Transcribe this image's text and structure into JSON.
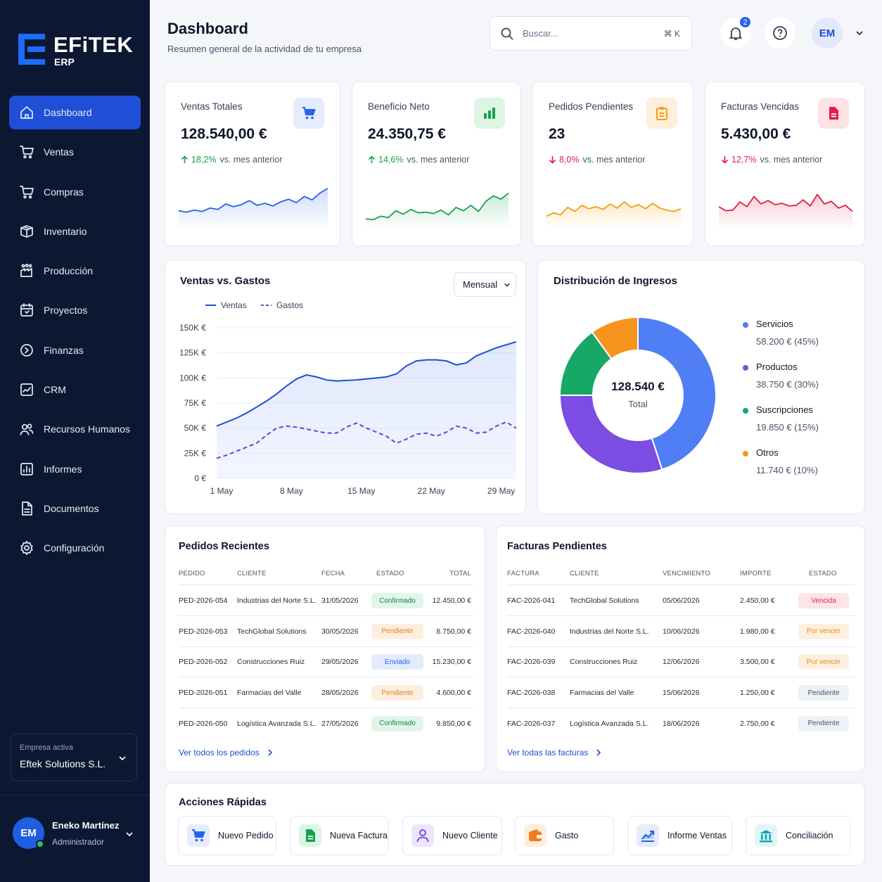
{
  "brand": {
    "name": "EFiTEK",
    "sub": "ERP"
  },
  "sidebar": {
    "items": [
      {
        "label": "Dashboard",
        "icon": "home-icon",
        "active": true
      },
      {
        "label": "Ventas",
        "icon": "cart-icon"
      },
      {
        "label": "Compras",
        "icon": "cart-icon"
      },
      {
        "label": "Inventario",
        "icon": "box-icon"
      },
      {
        "label": "Producción",
        "icon": "factory-icon"
      },
      {
        "label": "Proyectos",
        "icon": "calendar-icon"
      },
      {
        "label": "Finanzas",
        "icon": "coin-icon"
      },
      {
        "label": "CRM",
        "icon": "chart-icon"
      },
      {
        "label": "Recursos Humanos",
        "icon": "users-icon"
      },
      {
        "label": "Informes",
        "icon": "report-icon"
      },
      {
        "label": "Documentos",
        "icon": "document-icon"
      },
      {
        "label": "Configuración",
        "icon": "gear-icon"
      }
    ],
    "company_label": "Empresa activa",
    "company_value": "Eftek Solutions S.L.",
    "user": {
      "initials": "EM",
      "name": "Eneko Martínez",
      "role": "Administrador"
    }
  },
  "header": {
    "title": "Dashboard",
    "subtitle": "Resumen general de la actividad de tu empresa",
    "search_placeholder": "Buscar...",
    "search_shortcut": "⌘ K",
    "notifications": "2",
    "avatar": "EM"
  },
  "kpis": [
    {
      "title": "Ventas Totales",
      "value": "128.540,00 €",
      "change": "18,2%",
      "suffix": "vs. mes anterior",
      "dir": "up",
      "color": "#2563eb",
      "bg": "#e4ecfd",
      "icon": "cart-icon",
      "spark": [
        30,
        28,
        31,
        29,
        34,
        32,
        40,
        36,
        39,
        45,
        38,
        41,
        37,
        43,
        47,
        42,
        51,
        46,
        56,
        63
      ]
    },
    {
      "title": "Beneficio Neto",
      "value": "24.350,75 €",
      "change": "14,6%",
      "suffix": "vs. mes anterior",
      "dir": "up",
      "color": "#16a34a",
      "bg": "#dcf5e5",
      "icon": "bar-chart-icon",
      "spark": [
        18,
        17,
        22,
        20,
        30,
        25,
        32,
        27,
        28,
        26,
        31,
        24,
        35,
        30,
        38,
        29,
        44,
        52,
        47,
        56
      ]
    },
    {
      "title": "Pedidos Pendientes",
      "value": "23",
      "change": "8,0%",
      "suffix": "vs. mes anterior",
      "dir": "down",
      "color": "#f59e0b",
      "bg": "#fdefdc",
      "icon": "clipboard-icon",
      "spark": [
        22,
        27,
        24,
        35,
        29,
        38,
        33,
        36,
        32,
        40,
        34,
        43,
        35,
        39,
        33,
        41,
        34,
        31,
        29,
        33
      ]
    },
    {
      "title": "Facturas Vencidas",
      "value": "5.430,00 €",
      "change": "12,7%",
      "suffix": "vs. mes anterior",
      "dir": "down",
      "color": "#e11d48",
      "bg": "#fde2e6",
      "icon": "invoice-icon",
      "spark": [
        36,
        30,
        31,
        43,
        36,
        51,
        40,
        45,
        39,
        41,
        37,
        38,
        46,
        37,
        54,
        40,
        44,
        34,
        38,
        29
      ]
    }
  ],
  "sales_chart": {
    "title": "Ventas vs. Gastos",
    "period": "Mensual",
    "legend": [
      "Ventas",
      "Gastos"
    ],
    "y_ticks": [
      "150K €",
      "125K €",
      "100K €",
      "75K €",
      "50K €",
      "25K €",
      "0 €"
    ],
    "x_ticks": [
      "1 May",
      "8 May",
      "15 May",
      "22 May",
      "29 May"
    ],
    "chart_data": {
      "type": "line",
      "ylim": [
        0,
        150000
      ],
      "x": [
        "1 May",
        "2 May",
        "3 May",
        "4 May",
        "5 May",
        "6 May",
        "7 May",
        "8 May",
        "9 May",
        "10 May",
        "11 May",
        "12 May",
        "13 May",
        "14 May",
        "15 May",
        "16 May",
        "17 May",
        "18 May",
        "19 May",
        "20 May",
        "21 May",
        "22 May",
        "23 May",
        "24 May",
        "25 May",
        "26 May",
        "27 May",
        "28 May",
        "29 May",
        "30 May",
        "31 May"
      ],
      "series": [
        {
          "name": "Ventas",
          "values": [
            52000,
            56000,
            60000,
            65000,
            71000,
            77000,
            84000,
            92000,
            99000,
            103000,
            101000,
            98000,
            97000,
            97500,
            98000,
            99000,
            100000,
            101000,
            104000,
            112000,
            117000,
            118000,
            118000,
            117000,
            113000,
            115000,
            122000,
            126000,
            130000,
            133000,
            136000
          ]
        },
        {
          "name": "Gastos",
          "values": [
            20000,
            23000,
            27000,
            31000,
            35000,
            43000,
            50000,
            52000,
            51000,
            49000,
            47000,
            45000,
            45000,
            51000,
            55000,
            50000,
            46000,
            42000,
            35000,
            39000,
            44000,
            45000,
            42000,
            46000,
            52000,
            50000,
            45000,
            46000,
            52000,
            56000,
            50000
          ]
        }
      ]
    }
  },
  "donut": {
    "title": "Distribución de Ingresos",
    "center_value": "128.540 €",
    "center_label": "Total",
    "chart_data": {
      "type": "pie",
      "slices": [
        {
          "label": "Servicios",
          "amount": "58.200 € (45%)",
          "value": 45,
          "color": "#4f7ef5"
        },
        {
          "label": "Productos",
          "amount": "38.750 € (30%)",
          "value": 30,
          "color": "#7c4de3"
        },
        {
          "label": "Suscripciones",
          "amount": "19.850 € (15%)",
          "value": 15,
          "color": "#16a864"
        },
        {
          "label": "Otros",
          "amount": "11.740 € (10%)",
          "value": 10,
          "color": "#f7941d"
        }
      ]
    }
  },
  "orders": {
    "title": "Pedidos Recientes",
    "headers": [
      "PEDIDO",
      "CLIENTE",
      "FECHA",
      "ESTADO",
      "TOTAL"
    ],
    "rows": [
      {
        "id": "PED-2026-054",
        "client": "Industrias del Norte S.L.",
        "date": "31/05/2026",
        "status": "Confirmado",
        "total": "12.450,00 €"
      },
      {
        "id": "PED-2026-053",
        "client": "TechGlobal Solutions",
        "date": "30/05/2026",
        "status": "Pendiente",
        "total": "8.750,00 €"
      },
      {
        "id": "PED-2026-052",
        "client": "Construcciones Ruiz",
        "date": "29/05/2026",
        "status": "Enviado",
        "total": "15.230,00 €"
      },
      {
        "id": "PED-2026-051",
        "client": "Farmacias del Valle",
        "date": "28/05/2026",
        "status": "Pendiente",
        "total": "4.600,00 €"
      },
      {
        "id": "PED-2026-050",
        "client": "Logística Avanzada S.L.",
        "date": "27/05/2026",
        "status": "Confirmado",
        "total": "9.850,00 €"
      }
    ],
    "link": "Ver todos los pedidos"
  },
  "invoices": {
    "title": "Facturas Pendientes",
    "headers": [
      "FACTURA",
      "CLIENTE",
      "VENCIMIENTO",
      "IMPORTE",
      "ESTADO"
    ],
    "rows": [
      {
        "id": "FAC-2026-041",
        "client": "TechGlobal Solutions",
        "date": "05/06/2026",
        "amount": "2.450,00 €",
        "status": "Vencida"
      },
      {
        "id": "FAC-2026-040",
        "client": "Industrias del Norte S.L.",
        "date": "10/06/2026",
        "amount": "1.980,00 €",
        "status": "Por vencer"
      },
      {
        "id": "FAC-2026-039",
        "client": "Construcciones Ruiz",
        "date": "12/06/2026",
        "amount": "3.500,00 €",
        "status": "Por vencer"
      },
      {
        "id": "FAC-2026-038",
        "client": "Farmacias del Valle",
        "date": "15/06/2026",
        "amount": "1.250,00 €",
        "status": "Pendiente"
      },
      {
        "id": "FAC-2026-037",
        "client": "Logística Avanzada S.L.",
        "date": "18/06/2026",
        "amount": "2.750,00 €",
        "status": "Pendiente"
      }
    ],
    "link": "Ver todas las facturas"
  },
  "status_colors": {
    "Confirmado": {
      "bg": "#e1f6ea",
      "fg": "#15803d"
    },
    "Pendiente": {
      "bg": "#fdefe0",
      "fg": "#ea7a12"
    },
    "Enviado": {
      "bg": "#e3ebfd",
      "fg": "#2563eb"
    },
    "Vencida": {
      "bg": "#fde4e8",
      "fg": "#e11d48"
    },
    "Por vencer": {
      "bg": "#fdf0e0",
      "fg": "#ea8a12"
    },
    "Pendiente_inv": {
      "bg": "#eef1f5",
      "fg": "#475569"
    }
  },
  "quick_actions": {
    "title": "Acciones Rápidas",
    "items": [
      {
        "label": "Nuevo Pedido",
        "icon": "cart-icon",
        "color": "#2563eb",
        "bg": "#e4ecfd"
      },
      {
        "label": "Nueva Factura",
        "icon": "invoice-icon",
        "color": "#16a34a",
        "bg": "#dcf5e5"
      },
      {
        "label": "Nuevo Cliente",
        "icon": "user-icon",
        "color": "#7c4de3",
        "bg": "#ede5fb"
      },
      {
        "label": "Gasto",
        "icon": "wallet-icon",
        "color": "#f27a1a",
        "bg": "#fdeedd"
      },
      {
        "label": "Informe Ventas",
        "icon": "trend-icon",
        "color": "#2563eb",
        "bg": "#e4ecfd"
      },
      {
        "label": "Conciliación",
        "icon": "bank-icon",
        "color": "#0ea5b7",
        "bg": "#dff5f7"
      }
    ]
  }
}
